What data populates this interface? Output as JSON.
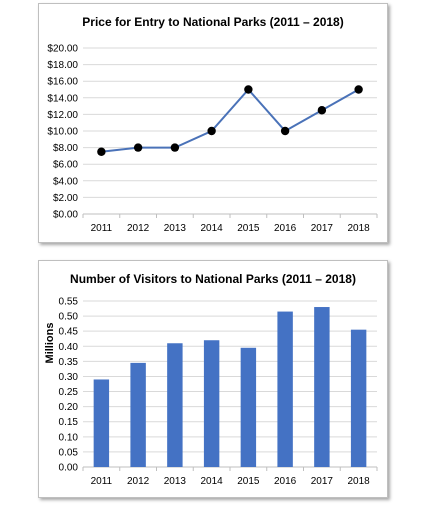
{
  "chart_data": [
    {
      "type": "line",
      "title": "Price for Entry to National Parks (2011 – 2018)",
      "categories": [
        "2011",
        "2012",
        "2013",
        "2014",
        "2015",
        "2016",
        "2017",
        "2018"
      ],
      "values": [
        7.5,
        8,
        8,
        10,
        15,
        10,
        12.5,
        15
      ],
      "ylim": [
        0,
        20
      ],
      "yticks": [
        "$0.00",
        "$2.00",
        "$4.00",
        "$6.00",
        "$8.00",
        "$10.00",
        "$12.00",
        "$14.00",
        "$16.00",
        "$18.00",
        "$20.00"
      ],
      "xlabel": "",
      "ylabel": "",
      "grid": true,
      "line_color": "#4a72b8",
      "marker_color": "#000000"
    },
    {
      "type": "bar",
      "title": "Number of Visitors to National Parks (2011 – 2018)",
      "categories": [
        "2011",
        "2012",
        "2013",
        "2014",
        "2015",
        "2016",
        "2017",
        "2018"
      ],
      "values": [
        0.29,
        0.345,
        0.41,
        0.42,
        0.395,
        0.515,
        0.53,
        0.455
      ],
      "ylim": [
        0,
        0.55
      ],
      "yticks": [
        "0.00",
        "0.05",
        "0.10",
        "0.15",
        "0.20",
        "0.25",
        "0.30",
        "0.35",
        "0.40",
        "0.45",
        "0.50",
        "0.55"
      ],
      "xlabel": "",
      "ylabel": "Millions",
      "grid": true,
      "bar_color": "#4472c4"
    }
  ]
}
